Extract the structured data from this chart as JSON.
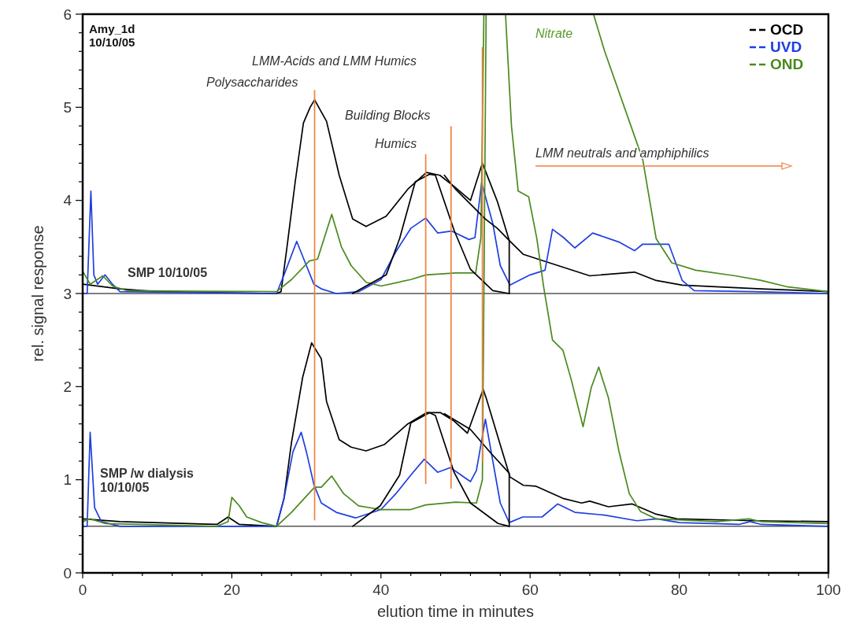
{
  "chart_data": {
    "type": "line",
    "title": "Amy_1d\n10/10/05",
    "xlabel": "elution time in minutes",
    "ylabel": "rel. signal response",
    "xlim": [
      0,
      100
    ],
    "ylim": [
      0,
      6
    ],
    "xticks": [
      0,
      {
        "value": 4,
        "label": null
      },
      {
        "value": 8,
        "label": null
      },
      {
        "value": 12,
        "label": null
      },
      {
        "value": 16,
        "label": null
      },
      20,
      {
        "value": 24,
        "label": null
      },
      {
        "value": 28,
        "label": null
      },
      {
        "value": 32,
        "label": null
      },
      {
        "value": 36,
        "label": null
      },
      40,
      {
        "value": 44,
        "label": null
      },
      {
        "value": 48,
        "label": null
      },
      {
        "value": 52,
        "label": null
      },
      {
        "value": 56,
        "label": null
      },
      60,
      {
        "value": 64,
        "label": null
      },
      {
        "value": 68,
        "label": null
      },
      {
        "value": 72,
        "label": null
      },
      {
        "value": 76,
        "label": null
      },
      80,
      {
        "value": 84,
        "label": null
      },
      {
        "value": 88,
        "label": null
      },
      {
        "value": 92,
        "label": null
      },
      {
        "value": 96,
        "label": null
      },
      100
    ],
    "yticks": [
      0,
      {
        "value": 0.2,
        "label": null
      },
      {
        "value": 0.4,
        "label": null
      },
      {
        "value": 0.6,
        "label": null
      },
      {
        "value": 0.8,
        "label": null
      },
      1,
      {
        "value": 1.2,
        "label": null
      },
      {
        "value": 1.4,
        "label": null
      },
      {
        "value": 1.6,
        "label": null
      },
      {
        "value": 1.8,
        "label": null
      },
      2,
      {
        "value": 2.2,
        "label": null
      },
      {
        "value": 2.4,
        "label": null
      },
      {
        "value": 2.6,
        "label": null
      },
      {
        "value": 2.8,
        "label": null
      },
      3,
      {
        "value": 3.2,
        "label": null
      },
      {
        "value": 3.4,
        "label": null
      },
      {
        "value": 3.6,
        "label": null
      },
      {
        "value": 3.8,
        "label": null
      },
      4,
      {
        "value": 4.2,
        "label": null
      },
      {
        "value": 4.4,
        "label": null
      },
      {
        "value": 4.6,
        "label": null
      },
      {
        "value": 4.8,
        "label": null
      },
      5,
      {
        "value": 5.2,
        "label": null
      },
      {
        "value": 5.4,
        "label": null
      },
      {
        "value": 5.6,
        "label": null
      },
      {
        "value": 5.8,
        "label": null
      },
      6
    ],
    "grid": false,
    "legend": "top right",
    "marker": "none",
    "line_style": "solid",
    "ref_lines": [
      {
        "axis": "y",
        "value": 3,
        "color": "#000000"
      },
      {
        "axis": "y",
        "value": 0.5,
        "color": "#000000"
      }
    ],
    "series": [
      {
        "name": "OCD",
        "color": "#000000",
        "x": [
          0,
          5,
          10,
          26,
          26.6,
          27.4,
          28.5,
          29.6,
          30.5,
          31.1,
          32.7,
          34.4,
          36.2,
          38,
          40.7,
          43.6,
          46.1,
          47.9,
          49.8,
          52,
          53.6,
          55.6,
          57.2,
          59.1,
          62.6,
          68,
          74,
          76.9,
          80.4,
          91,
          100
        ],
        "values": [
          3.1,
          3.05,
          3.02,
          3.0,
          3.02,
          3.5,
          4.2,
          4.83,
          5.0,
          5.08,
          4.85,
          4.27,
          3.8,
          3.72,
          3.83,
          4.12,
          4.3,
          4.27,
          4.15,
          4.0,
          4.4,
          3.99,
          3.57,
          3.42,
          3.33,
          3.19,
          3.23,
          3.14,
          3.09,
          3.05,
          3.02
        ]
      },
      {
        "name": "UVD",
        "color": "#1f3fe0",
        "x": [
          0,
          0.6,
          1.1,
          1.5,
          2,
          3,
          4,
          5,
          26,
          27,
          28.7,
          30,
          31,
          32,
          34,
          37,
          40,
          42,
          44,
          46,
          47.6,
          49.5,
          51.8,
          52.6,
          53.5,
          55,
          56,
          57.3,
          60,
          62,
          63,
          64.5,
          66,
          68.4,
          72,
          74,
          75.1,
          78.6,
          80.4,
          82,
          90,
          100
        ],
        "values": [
          3.0,
          3.0,
          4.1,
          3.2,
          3.1,
          3.2,
          3.1,
          3.02,
          3.0,
          3.2,
          3.56,
          3.3,
          3.1,
          3.05,
          3.0,
          3.02,
          3.15,
          3.45,
          3.7,
          3.81,
          3.65,
          3.67,
          3.58,
          3.6,
          4.19,
          3.75,
          3.3,
          3.09,
          3.2,
          3.25,
          3.69,
          3.6,
          3.49,
          3.65,
          3.55,
          3.46,
          3.53,
          3.53,
          3.14,
          3.03,
          3.02,
          3.0
        ]
      },
      {
        "name": "OND",
        "color": "#4a8a1e",
        "x": [
          0,
          1,
          2.7,
          4,
          6,
          26,
          28,
          30.4,
          31.5,
          33.4,
          34.7,
          36,
          38,
          40,
          44,
          46,
          50,
          52.7,
          53.4,
          53.8,
          60,
          68.5,
          70,
          75.1,
          76.9,
          79,
          82.2,
          87.5,
          91,
          94.6,
          100
        ],
        "values": [
          3.24,
          3.1,
          3.19,
          3.08,
          3.03,
          3.02,
          3.15,
          3.35,
          3.37,
          3.85,
          3.5,
          3.3,
          3.12,
          3.08,
          3.15,
          3.2,
          3.22,
          3.22,
          3.6,
          6,
          null,
          6,
          5.6,
          4.44,
          3.59,
          3.33,
          3.25,
          3.19,
          3.14,
          3.07,
          3.02
        ]
      },
      {
        "color": "#000000",
        "x": [
          0,
          5,
          18,
          19.5,
          21,
          26,
          27,
          28,
          29.5,
          30.7,
          32,
          32.7,
          34.4,
          36,
          38,
          40.5,
          43.6,
          46.1,
          48,
          49.8,
          51.6,
          53.7,
          54.1,
          55.6,
          57.3,
          59.1,
          60.8,
          64.4,
          66.9,
          68,
          70.5,
          73.7,
          76.9,
          79.7,
          90,
          100
        ],
        "values": [
          0.58,
          0.55,
          0.52,
          0.6,
          0.52,
          0.5,
          0.8,
          1.4,
          2.1,
          2.47,
          2.3,
          1.84,
          1.43,
          1.35,
          1.31,
          1.38,
          1.6,
          1.72,
          1.72,
          1.63,
          1.5,
          1.97,
          1.88,
          1.48,
          1.03,
          0.94,
          0.93,
          0.8,
          0.75,
          0.77,
          0.71,
          0.74,
          0.63,
          0.58,
          0.56,
          0.55
        ]
      },
      {
        "color": "#1f3fe0",
        "x": [
          0,
          0.6,
          1,
          1.6,
          2.5,
          5,
          19,
          26,
          27,
          28.2,
          29.3,
          30,
          31,
          32,
          34,
          36.6,
          40,
          42,
          44,
          45.8,
          47.6,
          49.3,
          52,
          52.8,
          54,
          55,
          56,
          57.2,
          59,
          61.6,
          63.7,
          66,
          70,
          74.3,
          77,
          80,
          88,
          89.5,
          91,
          100
        ],
        "values": [
          0.5,
          0.5,
          1.51,
          0.7,
          0.55,
          0.5,
          0.5,
          0.5,
          0.8,
          1.3,
          1.51,
          1.3,
          0.95,
          0.75,
          0.65,
          0.59,
          0.68,
          0.85,
          1.05,
          1.22,
          1.08,
          1.13,
          0.98,
          1.1,
          1.65,
          1.2,
          0.75,
          0.54,
          0.6,
          0.6,
          0.74,
          0.65,
          0.62,
          0.56,
          0.58,
          0.54,
          0.52,
          0.55,
          0.52,
          0.5
        ]
      },
      {
        "color": "#4a8a1e",
        "x": [
          0,
          1,
          3,
          18,
          19.5,
          20,
          21,
          22,
          24,
          26,
          28,
          31.1,
          32,
          33.4,
          35,
          37,
          40,
          44,
          46,
          50,
          52.8,
          53.6,
          54.1,
          55.5,
          56.7,
          57.5,
          58.4,
          59.8,
          60.9,
          61.8,
          63,
          64.4,
          65.5,
          67.1,
          68.2,
          69.2,
          70.5,
          71.9,
          73.3,
          74.8,
          76.9,
          85,
          89.3,
          91,
          100
        ],
        "values": [
          0.55,
          0.58,
          0.53,
          0.5,
          0.55,
          0.81,
          0.72,
          0.6,
          0.54,
          0.5,
          0.65,
          0.92,
          0.92,
          1.04,
          0.85,
          0.72,
          0.68,
          0.68,
          0.73,
          0.76,
          0.75,
          1.0,
          6,
          null,
          6,
          4.8,
          4.1,
          4.04,
          3.59,
          3.08,
          2.5,
          2.39,
          2.08,
          1.57,
          1.99,
          2.21,
          1.88,
          1.31,
          0.85,
          0.66,
          0.58,
          0.55,
          0.58,
          0.55,
          0.53
        ]
      },
      {
        "color": "#000000",
        "x": [
          36.2,
          40.7,
          42.5,
          44.6,
          46.5,
          47.3,
          49.8,
          52,
          55,
          57.2
        ],
        "values": [
          3.0,
          3.2,
          3.59,
          4.2,
          4.28,
          4.27,
          3.68,
          3.26,
          3.03,
          3.0
        ]
      },
      {
        "color": "#000000",
        "x": [
          48.5,
          50,
          52,
          54,
          55.6,
          57.2,
          57.2
        ],
        "values": [
          4.27,
          4.12,
          3.96,
          3.8,
          3.7,
          3.57,
          3.0
        ]
      },
      {
        "color": "#000000",
        "x": [
          36.2,
          39.9,
          42.5,
          44,
          46.5,
          47.3,
          49.8,
          52,
          55.7,
          57.2
        ],
        "values": [
          0.5,
          0.72,
          1.05,
          1.61,
          1.72,
          1.69,
          1.08,
          0.75,
          0.53,
          0.5
        ]
      },
      {
        "color": "#000000",
        "x": [
          48.5,
          52,
          54.8,
          57.2,
          57.2
        ],
        "values": [
          1.71,
          1.54,
          1.28,
          1.07,
          0.5
        ]
      },
      {
        "color": "#f08040",
        "x": [
          31.1,
          31.1
        ],
        "values": [
          5.18,
          0.57
        ]
      },
      {
        "color": "#f08040",
        "x": [
          46,
          46
        ],
        "values": [
          4.49,
          0.96
        ]
      },
      {
        "color": "#f08040",
        "x": [
          49.4,
          49.4
        ],
        "values": [
          4.79,
          0.91
        ]
      },
      {
        "color": "#f08040",
        "x": [
          53.6,
          53.6
        ],
        "values": [
          5.64,
          1.2
        ]
      }
    ],
    "annotations": [
      "Polysaccharides",
      "LMM-Acids and LMM Humics",
      "Building Blocks",
      "Humics",
      "Nitrate",
      "LMM neutrals and amphiphilics",
      "SMP 10/10/05",
      "SMP /w dialysis\n10/10/05"
    ]
  }
}
